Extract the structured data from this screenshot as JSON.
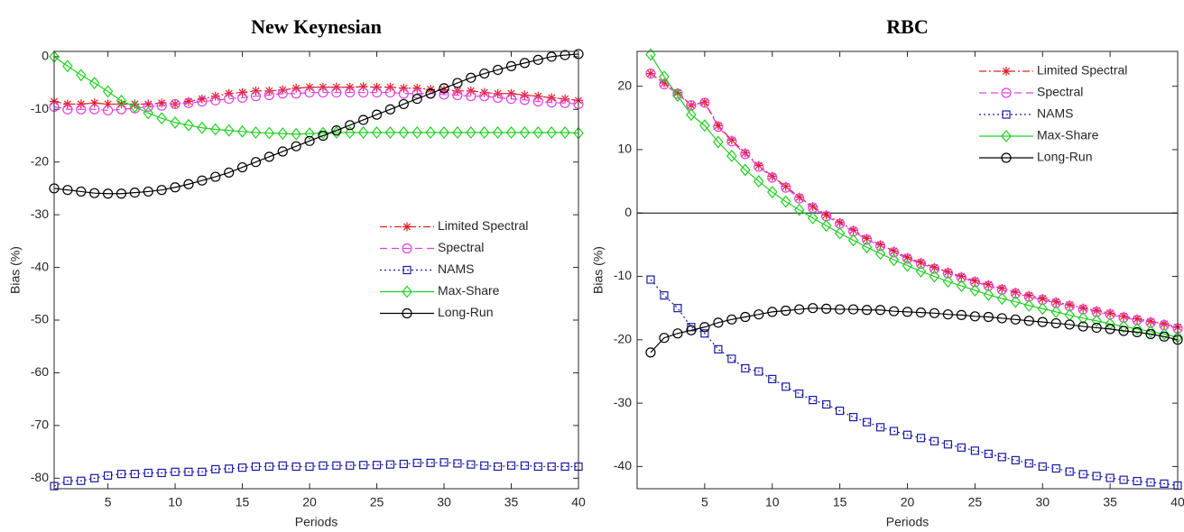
{
  "chart_data": [
    {
      "type": "line",
      "title": "New Keynesian",
      "x_label": "Periods",
      "y_label": "Bias (%)",
      "x": [
        1,
        2,
        3,
        4,
        5,
        6,
        7,
        8,
        9,
        10,
        11,
        12,
        13,
        14,
        15,
        16,
        17,
        18,
        19,
        20,
        21,
        22,
        23,
        24,
        25,
        26,
        27,
        28,
        29,
        30,
        31,
        32,
        33,
        34,
        35,
        36,
        37,
        38,
        39,
        40
      ],
      "xlim": [
        1,
        40
      ],
      "xticks": [
        5,
        10,
        15,
        20,
        25,
        30,
        35,
        40
      ],
      "ylim": [
        -82,
        1
      ],
      "yticks": [
        0,
        -10,
        -20,
        -30,
        -40,
        -50,
        -60,
        -70,
        -80
      ],
      "legend_position": "center right",
      "series": [
        {
          "name": "Limited Spectral",
          "color": "#e02020",
          "line_style": "dashdot",
          "marker": "asterisk",
          "values": [
            -8.5,
            -9,
            -9,
            -8.8,
            -9,
            -9,
            -9,
            -9,
            -8.8,
            -9,
            -8.5,
            -8,
            -7.5,
            -7,
            -6.8,
            -6.5,
            -6.5,
            -6.3,
            -6,
            -5.8,
            -5.8,
            -5.8,
            -5.8,
            -5.7,
            -5.8,
            -5.8,
            -6,
            -6,
            -6.2,
            -6.3,
            -6.5,
            -6.5,
            -6.8,
            -7,
            -7,
            -7.3,
            -7.5,
            -7.8,
            -8,
            -8.3
          ]
        },
        {
          "name": "Spectral",
          "color": "#e040e0",
          "line_style": "dashed",
          "marker": "circle",
          "values": [
            -9.5,
            -10,
            -10,
            -10,
            -10.2,
            -10,
            -9.8,
            -9.5,
            -9.3,
            -9,
            -8.8,
            -8.5,
            -8.3,
            -8,
            -7.8,
            -7.5,
            -7.3,
            -7,
            -7,
            -6.8,
            -6.8,
            -6.8,
            -6.8,
            -6.8,
            -6.8,
            -6.8,
            -7,
            -7,
            -7,
            -7.2,
            -7.3,
            -7.5,
            -7.5,
            -7.8,
            -8,
            -8.2,
            -8.5,
            -8.7,
            -8.8,
            -9
          ]
        },
        {
          "name": "NAMS",
          "color": "#1a1aa6",
          "line_style": "dotted",
          "marker": "square",
          "values": [
            -81.5,
            -80.5,
            -80.5,
            -80,
            -79.5,
            -79.2,
            -79.2,
            -79,
            -79,
            -78.8,
            -78.8,
            -78.8,
            -78.3,
            -78.2,
            -78,
            -77.8,
            -77.8,
            -77.6,
            -77.8,
            -77.8,
            -77.6,
            -77.6,
            -77.6,
            -77.5,
            -77.5,
            -77.4,
            -77.3,
            -77.1,
            -77.1,
            -77,
            -77.2,
            -77.4,
            -77.6,
            -77.8,
            -77.6,
            -77.6,
            -77.8,
            -77.8,
            -77.8,
            -77.8
          ]
        },
        {
          "name": "Max-Share",
          "color": "#20d020",
          "line_style": "solid",
          "marker": "diamond",
          "values": [
            0,
            -1.8,
            -3.5,
            -5,
            -6.6,
            -8.4,
            -9.5,
            -10.7,
            -11.7,
            -12.5,
            -13,
            -13.5,
            -13.8,
            -14,
            -14.2,
            -14.4,
            -14.5,
            -14.6,
            -14.7,
            -14.6,
            -14.5,
            -14.4,
            -14.4,
            -14.4,
            -14.4,
            -14.4,
            -14.4,
            -14.4,
            -14.4,
            -14.4,
            -14.4,
            -14.4,
            -14.4,
            -14.4,
            -14.4,
            -14.4,
            -14.4,
            -14.4,
            -14.4,
            -14.5
          ]
        },
        {
          "name": "Long-Run",
          "color": "#000000",
          "line_style": "solid",
          "marker": "circle",
          "values": [
            -25,
            -25.3,
            -25.6,
            -25.9,
            -26,
            -26,
            -25.8,
            -25.6,
            -25.3,
            -24.8,
            -24.2,
            -23.5,
            -22.8,
            -22,
            -21,
            -20,
            -19,
            -18,
            -17,
            -16,
            -15,
            -14,
            -13,
            -12,
            -11,
            -10,
            -9,
            -8,
            -7,
            -6,
            -5,
            -4,
            -3.2,
            -2.5,
            -1.8,
            -1.2,
            -0.6,
            0,
            0.3,
            0.5
          ]
        }
      ]
    },
    {
      "type": "line",
      "title": "RBC",
      "x_label": "Periods",
      "y_label": "Bias (%)",
      "x": [
        1,
        2,
        3,
        4,
        5,
        6,
        7,
        8,
        9,
        10,
        11,
        12,
        13,
        14,
        15,
        16,
        17,
        18,
        19,
        20,
        21,
        22,
        23,
        24,
        25,
        26,
        27,
        28,
        29,
        30,
        31,
        32,
        33,
        34,
        35,
        36,
        37,
        38,
        39,
        40
      ],
      "xlim": [
        0,
        40
      ],
      "xticks": [
        5,
        10,
        15,
        20,
        25,
        30,
        35,
        40
      ],
      "ylim": [
        -43.5,
        25.5
      ],
      "yticks": [
        20,
        10,
        0,
        -10,
        -20,
        -30,
        -40
      ],
      "hline": 0,
      "legend_position": "upper right",
      "series": [
        {
          "name": "Limited Spectral",
          "color": "#e02020",
          "line_style": "dashdot",
          "marker": "asterisk",
          "values": [
            22,
            20.5,
            19,
            17,
            17.5,
            13.8,
            11.5,
            9.5,
            7.5,
            5.8,
            4.2,
            2.5,
            1,
            -0.3,
            -1.5,
            -2.7,
            -4,
            -5,
            -6,
            -7,
            -7.8,
            -8.6,
            -9.3,
            -10,
            -10.7,
            -11.3,
            -11.9,
            -12.5,
            -13,
            -13.5,
            -14,
            -14.5,
            -15,
            -15.4,
            -15.8,
            -16.3,
            -16.7,
            -17.1,
            -17.5,
            -18
          ]
        },
        {
          "name": "Spectral",
          "color": "#e040e0",
          "line_style": "dashed",
          "marker": "circle",
          "values": [
            22,
            20.3,
            18.8,
            17,
            17.4,
            13.6,
            11.3,
            9.3,
            7.3,
            5.6,
            4,
            2.3,
            0.8,
            -0.5,
            -1.7,
            -2.9,
            -4.2,
            -5.2,
            -6.2,
            -7.2,
            -8,
            -8.8,
            -9.5,
            -10.2,
            -10.9,
            -11.5,
            -12.1,
            -12.7,
            -13.2,
            -13.7,
            -14.2,
            -14.7,
            -15.2,
            -15.6,
            -16,
            -16.5,
            -16.9,
            -17.3,
            -17.7,
            -18.2
          ]
        },
        {
          "name": "NAMS",
          "color": "#1a1aa6",
          "line_style": "dotted",
          "marker": "square",
          "values": [
            -10.5,
            -13,
            -15,
            -18,
            -19,
            -21.5,
            -23,
            -24.5,
            -25,
            -26.2,
            -27.4,
            -28.5,
            -29.5,
            -30.2,
            -31.2,
            -32.2,
            -33,
            -33.8,
            -34.4,
            -35,
            -35.5,
            -36,
            -36.5,
            -37,
            -37.5,
            -38,
            -38.5,
            -39,
            -39.5,
            -40,
            -40.3,
            -40.8,
            -41.2,
            -41.5,
            -41.8,
            -42.1,
            -42.3,
            -42.5,
            -42.7,
            -43
          ]
        },
        {
          "name": "Max-Share",
          "color": "#20d020",
          "line_style": "solid",
          "marker": "diamond",
          "values": [
            25,
            21.5,
            18.5,
            15.5,
            13.8,
            11.2,
            9,
            6.8,
            5,
            3.3,
            1.8,
            0.5,
            -0.8,
            -2,
            -3.2,
            -4.3,
            -5.4,
            -6.4,
            -7.4,
            -8.3,
            -9.2,
            -10,
            -10.8,
            -11.5,
            -12.2,
            -12.9,
            -13.5,
            -14,
            -14.6,
            -15.1,
            -15.6,
            -16.1,
            -16.6,
            -17,
            -17.5,
            -17.9,
            -18.3,
            -18.7,
            -19.1,
            -19.6
          ]
        },
        {
          "name": "Long-Run",
          "color": "#000000",
          "line_style": "solid",
          "marker": "circle",
          "values": [
            -22,
            -19.7,
            -19,
            -18.5,
            -18,
            -17.3,
            -16.8,
            -16.4,
            -16,
            -15.6,
            -15.4,
            -15.2,
            -15,
            -15.1,
            -15.2,
            -15.2,
            -15.3,
            -15.3,
            -15.5,
            -15.6,
            -15.7,
            -15.8,
            -16,
            -16.1,
            -16.3,
            -16.4,
            -16.6,
            -16.8,
            -17,
            -17.2,
            -17.4,
            -17.6,
            -17.9,
            -18.1,
            -18.3,
            -18.6,
            -18.8,
            -19.1,
            -19.5,
            -20
          ]
        }
      ]
    }
  ]
}
